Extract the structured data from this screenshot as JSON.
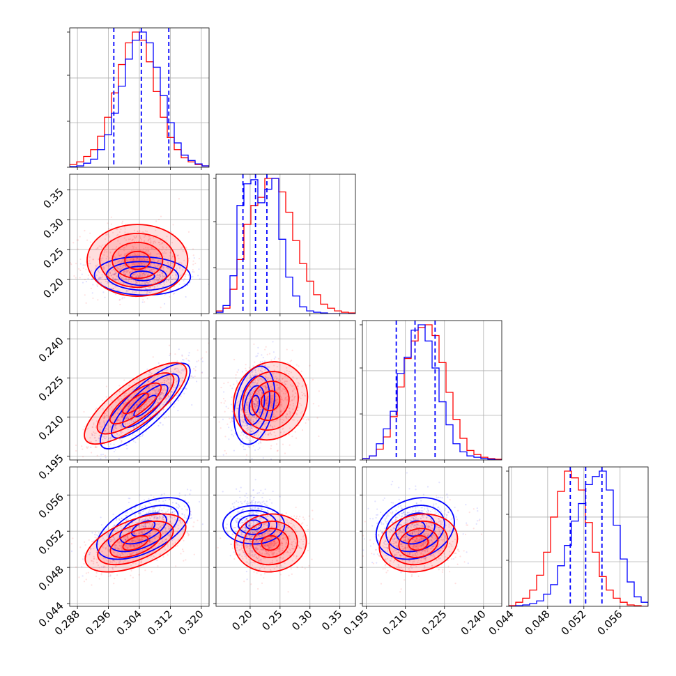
{
  "chart_data": {
    "type": "corner-plot",
    "series_colors": {
      "first": "#0000ff",
      "second": "#ff0000"
    },
    "grid": true,
    "parameters": [
      {
        "range": [
          0.286,
          0.322
        ],
        "ticks": [
          0.288,
          0.296,
          0.304,
          0.312,
          0.32
        ],
        "tick_labels": [
          "0.288",
          "0.296",
          "0.304",
          "0.312",
          "0.320"
        ]
      },
      {
        "range": [
          0.143,
          0.376
        ],
        "ticks": [
          0.2,
          0.25,
          0.3,
          0.35
        ],
        "tick_labels": [
          "0.20",
          "0.25",
          "0.30",
          "0.35"
        ]
      },
      {
        "range": [
          0.1935,
          0.247
        ],
        "ticks": [
          0.195,
          0.21,
          0.225,
          0.24
        ],
        "tick_labels": [
          "0.195",
          "0.210",
          "0.225",
          "0.240"
        ]
      },
      {
        "range": [
          0.0437,
          0.0591
        ],
        "ticks": [
          0.044,
          0.048,
          0.052,
          0.056
        ],
        "tick_labels": [
          "0.044",
          "0.048",
          "0.052",
          "0.056"
        ]
      }
    ],
    "histograms": [
      {
        "blue": [
          0.005,
          0.01,
          0.03,
          0.06,
          0.13,
          0.24,
          0.4,
          0.6,
          0.8,
          0.94,
          1.0,
          0.92,
          0.74,
          0.53,
          0.33,
          0.18,
          0.09,
          0.05,
          0.025,
          0.01
        ],
        "red": [
          0.02,
          0.04,
          0.08,
          0.13,
          0.23,
          0.37,
          0.55,
          0.76,
          0.92,
          1.0,
          0.94,
          0.78,
          0.56,
          0.37,
          0.22,
          0.13,
          0.07,
          0.04,
          0.02,
          0.01
        ],
        "quantiles_blue": [
          0.2974,
          0.3045,
          0.3116
        ]
      },
      {
        "blue": [
          0.01,
          0.06,
          0.28,
          0.8,
          0.96,
          0.99,
          0.82,
          0.92,
          1.0,
          0.55,
          0.27,
          0.13,
          0.05,
          0.02,
          0.01,
          0.005,
          0,
          0,
          0,
          0
        ],
        "red": [
          0.02,
          0.04,
          0.18,
          0.4,
          0.66,
          0.8,
          0.86,
          1.0,
          1.0,
          0.9,
          0.75,
          0.54,
          0.37,
          0.24,
          0.14,
          0.07,
          0.04,
          0.02,
          0.01,
          0.005
        ],
        "quantiles_blue": [
          0.188,
          0.209,
          0.228
        ]
      },
      {
        "blue": [
          0.01,
          0.03,
          0.12,
          0.23,
          0.36,
          0.64,
          0.76,
          0.96,
          1.0,
          0.88,
          0.68,
          0.43,
          0.26,
          0.12,
          0.06,
          0.03,
          0.02,
          0.01,
          0.005,
          0
        ],
        "red": [
          0.01,
          0.03,
          0.08,
          0.17,
          0.32,
          0.54,
          0.75,
          0.88,
          0.98,
          1.0,
          0.92,
          0.72,
          0.5,
          0.3,
          0.16,
          0.07,
          0.04,
          0.02,
          0.01,
          0.005
        ],
        "quantiles_blue": [
          0.2065,
          0.2137,
          0.2214
        ]
      },
      {
        "blue": [
          0,
          0.005,
          0.01,
          0.02,
          0.04,
          0.09,
          0.16,
          0.3,
          0.45,
          0.63,
          0.76,
          0.9,
          0.96,
          1.0,
          0.86,
          0.6,
          0.35,
          0.18,
          0.07,
          0.03
        ],
        "red": [
          0.005,
          0.03,
          0.06,
          0.12,
          0.23,
          0.4,
          0.66,
          0.85,
          1.0,
          0.95,
          0.86,
          0.62,
          0.4,
          0.22,
          0.12,
          0.06,
          0.03,
          0.01,
          0.005,
          0
        ],
        "quantiles_blue": [
          0.0505,
          0.0522,
          0.054
        ]
      }
    ],
    "pairs": [
      {
        "row": 1,
        "col": 0,
        "blue": {
          "mean": [
            0.3048,
            0.206
          ],
          "sd": [
            0.0062,
            0.016
          ],
          "rho": -0.05
        },
        "red": {
          "mean": [
            0.3035,
            0.232
          ],
          "sd": [
            0.0065,
            0.03
          ],
          "rho": 0.0
        }
      },
      {
        "row": 2,
        "col": 0,
        "blue": {
          "mean": [
            0.3055,
            0.2142
          ],
          "sd": [
            0.0058,
            0.0082
          ],
          "rho": 0.82
        },
        "red": {
          "mean": [
            0.303,
            0.2152
          ],
          "sd": [
            0.0066,
            0.0078
          ],
          "rho": 0.78
        }
      },
      {
        "row": 2,
        "col": 1,
        "blue": {
          "mean": [
            0.207,
            0.2145
          ],
          "sd": [
            0.017,
            0.0075
          ],
          "rho": 0.3
        },
        "red": {
          "mean": [
            0.234,
            0.2162
          ],
          "sd": [
            0.031,
            0.0075
          ],
          "rho": 0.1
        }
      },
      {
        "row": 3,
        "col": 0,
        "blue": {
          "mean": [
            0.305,
            0.0523
          ],
          "sd": [
            0.006,
            0.0017
          ],
          "rho": 0.55
        },
        "red": {
          "mean": [
            0.303,
            0.0507
          ],
          "sd": [
            0.0065,
            0.0016
          ],
          "rho": 0.55
        }
      },
      {
        "row": 3,
        "col": 1,
        "blue": {
          "mean": [
            0.206,
            0.0527
          ],
          "sd": [
            0.016,
            0.0017
          ],
          "rho": 0.0
        },
        "red": {
          "mean": [
            0.234,
            0.0507
          ],
          "sd": [
            0.03,
            0.0016
          ],
          "rho": 0.05
        }
      },
      {
        "row": 3,
        "col": 2,
        "blue": {
          "mean": [
            0.2138,
            0.0523
          ],
          "sd": [
            0.0075,
            0.0017
          ],
          "rho": 0.2
        },
        "red": {
          "mean": [
            0.215,
            0.0507
          ],
          "sd": [
            0.0075,
            0.0016
          ],
          "rho": 0.15
        }
      }
    ]
  }
}
